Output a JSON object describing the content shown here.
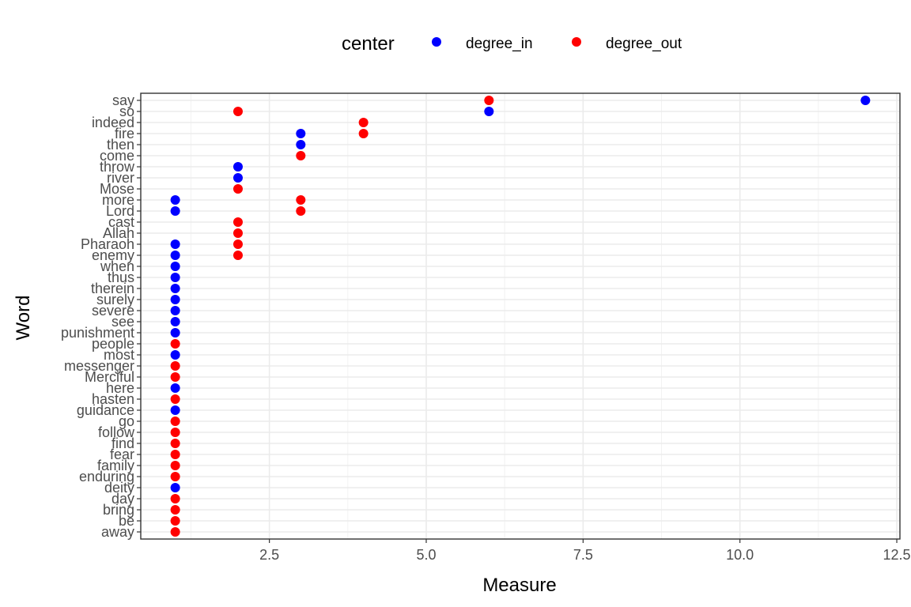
{
  "chart_data": {
    "type": "scatter",
    "xlabel": "Measure",
    "ylabel": "Word",
    "xlim": [
      0.45,
      12.55
    ],
    "x_ticks": [
      "2.5",
      "5.0",
      "7.5",
      "10.0",
      "12.5"
    ],
    "grid": true,
    "legend_position": "top",
    "legend": {
      "title": "center",
      "entries": [
        {
          "name": "degree_in",
          "color": "#0000ff"
        },
        {
          "name": "degree_out",
          "color": "#ff0000"
        }
      ]
    },
    "categories": [
      "say",
      "so",
      "indeed",
      "fire",
      "then",
      "come",
      "throw",
      "river",
      "Mose",
      "more",
      "Lord",
      "cast",
      "Allah",
      "Pharaoh",
      "enemy",
      "when",
      "thus",
      "therein",
      "surely",
      "severe",
      "see",
      "punishment",
      "people",
      "most",
      "messenger",
      "Merciful",
      "here",
      "hasten",
      "guidance",
      "go",
      "follow",
      "find",
      "fear",
      "family",
      "enduring",
      "deity",
      "day",
      "bring",
      "be",
      "away"
    ],
    "series": [
      {
        "name": "degree_in",
        "color": "#0000ff",
        "points": [
          {
            "word": "say",
            "x": 12
          },
          {
            "word": "so",
            "x": 6
          },
          {
            "word": "fire",
            "x": 3
          },
          {
            "word": "then",
            "x": 3
          },
          {
            "word": "throw",
            "x": 2
          },
          {
            "word": "river",
            "x": 2
          },
          {
            "word": "more",
            "x": 1
          },
          {
            "word": "Lord",
            "x": 1
          },
          {
            "word": "Pharaoh",
            "x": 1
          },
          {
            "word": "enemy",
            "x": 1
          },
          {
            "word": "when",
            "x": 1
          },
          {
            "word": "thus",
            "x": 1
          },
          {
            "word": "therein",
            "x": 1
          },
          {
            "word": "surely",
            "x": 1
          },
          {
            "word": "severe",
            "x": 1
          },
          {
            "word": "see",
            "x": 1
          },
          {
            "word": "punishment",
            "x": 1
          },
          {
            "word": "most",
            "x": 1
          },
          {
            "word": "here",
            "x": 1
          },
          {
            "word": "guidance",
            "x": 1
          },
          {
            "word": "deity",
            "x": 1
          }
        ]
      },
      {
        "name": "degree_out",
        "color": "#ff0000",
        "points": [
          {
            "word": "say",
            "x": 6
          },
          {
            "word": "so",
            "x": 2
          },
          {
            "word": "indeed",
            "x": 4
          },
          {
            "word": "fire",
            "x": 4
          },
          {
            "word": "come",
            "x": 3
          },
          {
            "word": "Mose",
            "x": 2
          },
          {
            "word": "more",
            "x": 3
          },
          {
            "word": "Lord",
            "x": 3
          },
          {
            "word": "cast",
            "x": 2
          },
          {
            "word": "Allah",
            "x": 2
          },
          {
            "word": "Pharaoh",
            "x": 2
          },
          {
            "word": "enemy",
            "x": 2
          },
          {
            "word": "people",
            "x": 1
          },
          {
            "word": "messenger",
            "x": 1
          },
          {
            "word": "Merciful",
            "x": 1
          },
          {
            "word": "hasten",
            "x": 1
          },
          {
            "word": "go",
            "x": 1
          },
          {
            "word": "follow",
            "x": 1
          },
          {
            "word": "find",
            "x": 1
          },
          {
            "word": "fear",
            "x": 1
          },
          {
            "word": "family",
            "x": 1
          },
          {
            "word": "enduring",
            "x": 1
          },
          {
            "word": "day",
            "x": 1
          },
          {
            "word": "bring",
            "x": 1
          },
          {
            "word": "be",
            "x": 1
          },
          {
            "word": "away",
            "x": 1
          }
        ]
      }
    ]
  }
}
